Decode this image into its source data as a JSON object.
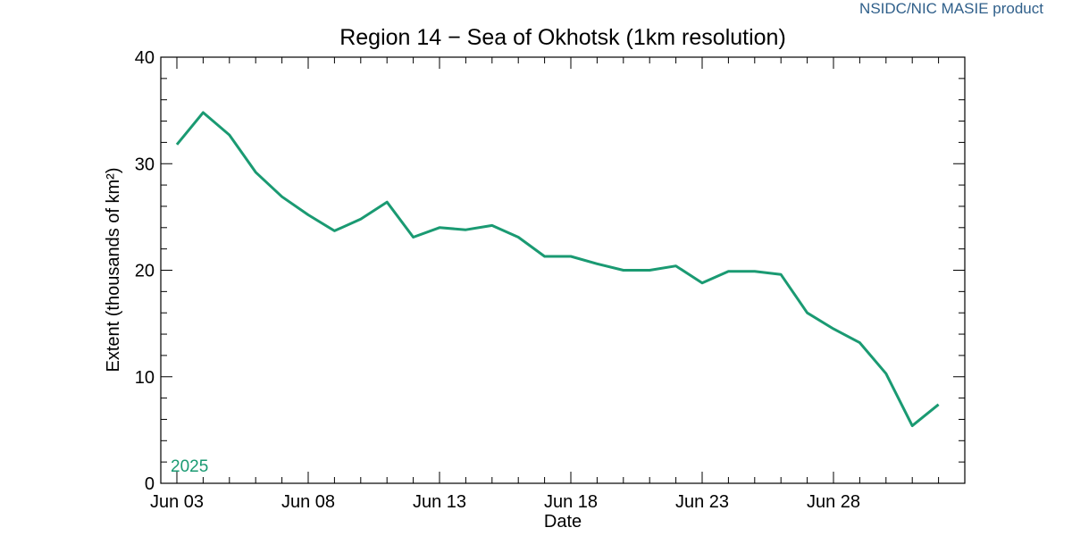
{
  "credit": "NSIDC/NIC MASIE product",
  "chart_data": {
    "type": "line",
    "title": "Region 14 − Sea of Okhotsk (1km resolution)",
    "xlabel": "Date",
    "ylabel": "Extent (thousands of km²)",
    "ylim": [
      0,
      40
    ],
    "yticks": [
      0,
      10,
      20,
      30,
      40
    ],
    "xlim": [
      "2025-06-03",
      "2025-07-03"
    ],
    "xticks": [
      {
        "date": "2025-06-03",
        "label": "Jun 03"
      },
      {
        "date": "2025-06-08",
        "label": "Jun 08"
      },
      {
        "date": "2025-06-13",
        "label": "Jun 13"
      },
      {
        "date": "2025-06-18",
        "label": "Jun 18"
      },
      {
        "date": "2025-06-23",
        "label": "Jun 23"
      },
      {
        "date": "2025-06-28",
        "label": "Jun 28"
      }
    ],
    "grid": false,
    "series": [
      {
        "name": "2025",
        "color": "#1a9a72",
        "x": [
          "2025-06-03",
          "2025-06-04",
          "2025-06-05",
          "2025-06-06",
          "2025-06-07",
          "2025-06-08",
          "2025-06-09",
          "2025-06-10",
          "2025-06-11",
          "2025-06-12",
          "2025-06-13",
          "2025-06-14",
          "2025-06-15",
          "2025-06-16",
          "2025-06-17",
          "2025-06-18",
          "2025-06-19",
          "2025-06-20",
          "2025-06-21",
          "2025-06-22",
          "2025-06-23",
          "2025-06-24",
          "2025-06-25",
          "2025-06-26",
          "2025-06-27",
          "2025-06-28",
          "2025-06-29",
          "2025-06-30",
          "2025-07-01",
          "2025-07-02"
        ],
        "values": [
          31.8,
          34.8,
          32.7,
          29.2,
          26.9,
          25.2,
          23.7,
          24.8,
          26.4,
          23.1,
          24.0,
          23.8,
          24.2,
          23.1,
          21.3,
          21.3,
          20.6,
          20.0,
          20.0,
          20.4,
          18.8,
          19.9,
          19.9,
          19.6,
          16.0,
          14.5,
          13.2,
          10.3,
          5.4,
          7.4
        ]
      }
    ]
  }
}
